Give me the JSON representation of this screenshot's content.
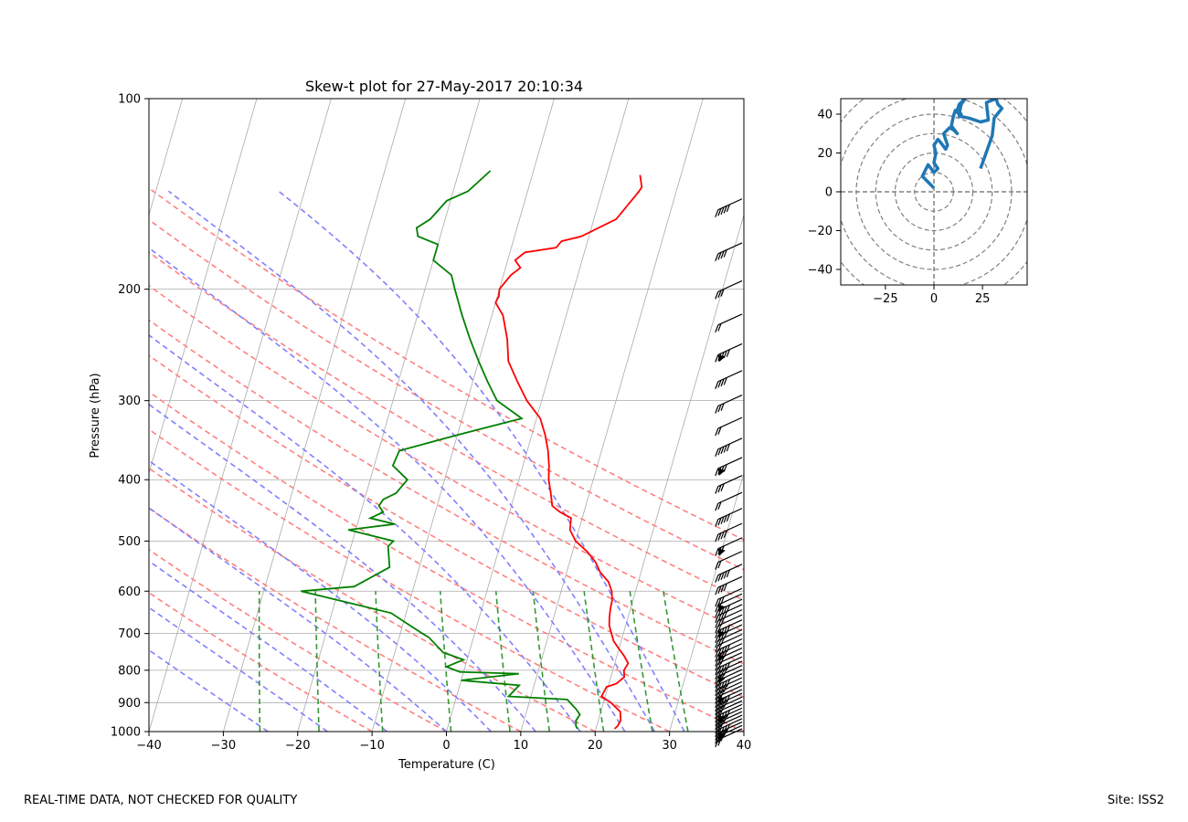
{
  "page": {
    "footer_left": "REAL-TIME DATA, NOT CHECKED FOR QUALITY",
    "footer_right": "Site: ISS2"
  },
  "chart_data": [
    {
      "type": "line",
      "subtype": "skew-t log-p",
      "title": "Skew-t plot for 27-May-2017 20:10:34",
      "xlabel": "Temperature (C)",
      "ylabel": "Pressure (hPa)",
      "xlim": [
        -40,
        40
      ],
      "ylim": [
        1000,
        100
      ],
      "y_scale": "log",
      "x_ticks": [
        -40,
        -30,
        -20,
        -10,
        0,
        10,
        20,
        30,
        40
      ],
      "y_ticks": [
        100,
        200,
        300,
        400,
        500,
        600,
        700,
        800,
        900,
        1000
      ],
      "grid": true,
      "colors": {
        "temperature": "#ff0000",
        "dewpoint": "#008000",
        "dry_adiabats": "#ff8080",
        "moist_adiabats": "#8080ff",
        "mixing_ratio": "#339933",
        "isotherms": "#aaaaaa"
      },
      "series": [
        {
          "key": "temperature",
          "x": [
            22.5,
            22.8,
            23,
            22.6,
            21,
            19.5,
            19.8,
            21,
            21.8,
            21.5,
            21.8,
            21,
            20,
            19,
            18.4,
            17.8,
            17.5,
            17.3,
            17.2,
            16.8,
            16,
            14.5,
            13.5,
            12,
            10,
            8.8,
            8.5,
            6.8,
            5.5,
            4.8,
            4,
            3.5,
            2.8,
            1.8,
            0.5,
            -2,
            -4,
            -6,
            -7,
            -8.5,
            -10,
            -9.8,
            -10,
            -9,
            -8,
            -9,
            -8,
            -4,
            -3.5,
            -1,
            3,
            5,
            5.2,
            4.5
          ],
          "y": [
            990,
            980,
            960,
            930,
            900,
            880,
            850,
            840,
            820,
            800,
            780,
            760,
            740,
            720,
            700,
            680,
            660,
            640,
            620,
            600,
            580,
            560,
            540,
            520,
            500,
            480,
            460,
            450,
            440,
            420,
            400,
            380,
            360,
            340,
            320,
            300,
            280,
            260,
            240,
            220,
            210,
            205,
            200,
            190,
            185,
            180,
            175,
            172,
            168,
            165,
            155,
            140,
            138,
            132
          ]
        },
        {
          "key": "dewpoint",
          "x": [
            17.5,
            17.2,
            17,
            17.3,
            16.5,
            16,
            15,
            7,
            8,
            0,
            7.5,
            -0.5,
            -2.5,
            -0.5,
            -3.5,
            -6,
            -7,
            -9,
            -12,
            -25,
            -18,
            -14,
            -15,
            -14.5,
            -21,
            -15,
            -18.5,
            -17,
            -17.8,
            -17.5,
            -16,
            -15,
            -17.5,
            -17.2,
            -10,
            -2,
            -6,
            -8,
            -10,
            -12,
            -14,
            -16,
            -17,
            -20,
            -20,
            -23,
            -23.5,
            -22,
            -20.5,
            -18,
            -15.8
          ],
          "y": [
            990,
            980,
            960,
            940,
            920,
            910,
            890,
            880,
            845,
            830,
            810,
            805,
            790,
            770,
            750,
            710,
            700,
            680,
            650,
            600,
            590,
            550,
            510,
            500,
            480,
            470,
            460,
            450,
            440,
            430,
            420,
            400,
            380,
            360,
            340,
            320,
            300,
            280,
            260,
            240,
            220,
            200,
            190,
            180,
            170,
            165,
            160,
            155,
            145,
            140,
            130
          ]
        }
      ],
      "wind_barbs": "right-edge column of black wind barbs"
    },
    {
      "type": "line",
      "subtype": "hodograph",
      "xlim": [
        -48,
        48
      ],
      "ylim": [
        -48,
        48
      ],
      "x_ticks": [
        -25,
        0,
        25
      ],
      "y_ticks": [
        -40,
        -20,
        0,
        20,
        40
      ],
      "rings": [
        10,
        20,
        30,
        40,
        50,
        60
      ],
      "color": "#1f77b4",
      "x": [
        0,
        -6,
        -3,
        0,
        2,
        0,
        1,
        0,
        2,
        3,
        6,
        7,
        5,
        8,
        10,
        12,
        9,
        10,
        11,
        13,
        14,
        16,
        13,
        12,
        14,
        13,
        18,
        24,
        28,
        27,
        32,
        33,
        35,
        31,
        30,
        24
      ],
      "y": [
        2,
        8,
        14,
        10,
        12,
        15,
        20,
        24,
        27,
        26,
        22,
        24,
        30,
        33,
        32,
        30,
        34,
        39,
        42,
        40,
        45,
        48,
        45,
        42,
        40,
        39,
        38,
        36,
        37,
        46,
        48,
        45,
        43,
        38,
        29,
        12
      ]
    }
  ]
}
